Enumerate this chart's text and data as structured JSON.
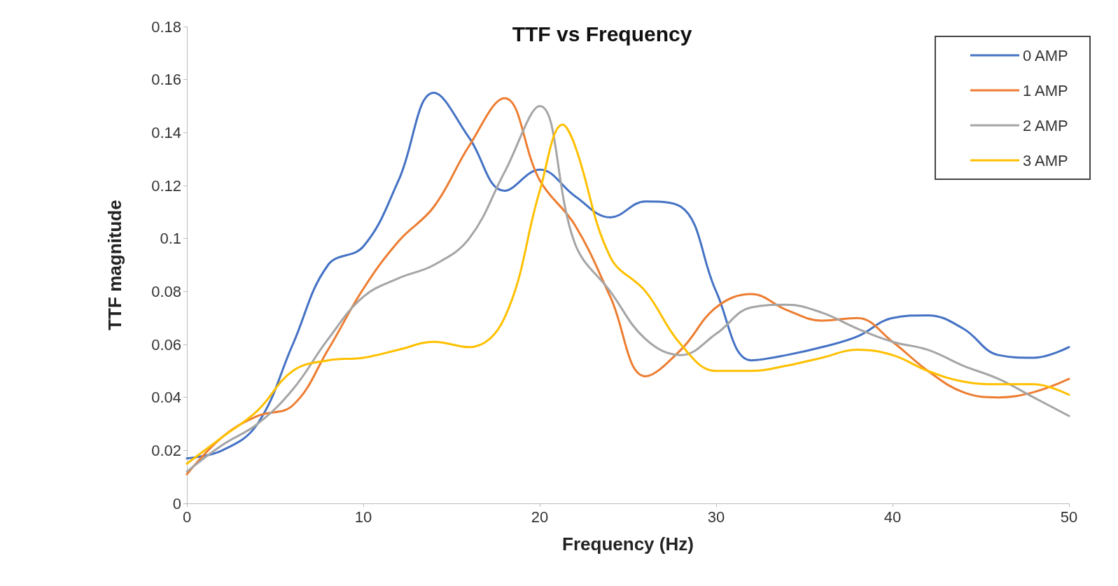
{
  "chart_data": {
    "type": "line",
    "title": "TTF vs Frequency",
    "xlabel": "Frequency (Hz)",
    "ylabel": "TTF magnitude",
    "x": [
      0,
      2,
      4,
      6,
      8,
      10,
      12,
      14,
      16,
      18,
      20,
      22,
      24,
      26,
      28,
      30,
      32,
      34,
      36,
      38,
      40,
      42,
      44,
      46,
      48,
      50
    ],
    "series": [
      {
        "name": "0 AMP",
        "color": "#4472c4",
        "values": [
          0.017,
          0.02,
          0.03,
          0.06,
          0.09,
          0.097,
          0.122,
          0.155,
          0.138,
          0.118,
          0.126,
          0.116,
          0.108,
          0.114,
          0.112,
          0.08,
          0.054,
          0.056,
          0.059,
          0.063,
          0.07,
          0.071,
          0.066,
          0.056,
          0.055,
          0.059
        ]
      },
      {
        "name": "1 AMP",
        "color": "#ed7d31",
        "values": [
          0.011,
          0.025,
          0.033,
          0.037,
          0.058,
          0.081,
          0.099,
          0.112,
          0.135,
          0.153,
          0.122,
          0.105,
          0.078,
          0.048,
          0.058,
          0.074,
          0.079,
          0.073,
          0.069,
          0.07,
          0.061,
          0.05,
          0.042,
          0.04,
          0.042,
          0.047
        ]
      },
      {
        "name": "2 AMP",
        "color": "#a5a5a5",
        "values": [
          0.012,
          0.022,
          0.03,
          0.043,
          0.062,
          0.078,
          0.085,
          0.09,
          0.1,
          0.125,
          0.15,
          0.098,
          0.08,
          0.062,
          0.056,
          0.064,
          0.074,
          0.075,
          0.072,
          0.066,
          0.061,
          0.058,
          0.052,
          0.047,
          0.04,
          0.033
        ]
      },
      {
        "name": "3 AMP",
        "color": "#ffc000",
        "x": [
          0,
          2,
          4,
          6,
          8,
          10,
          12,
          14,
          16,
          18,
          20,
          21.3,
          22,
          24,
          26,
          28,
          30,
          32,
          34,
          36,
          38,
          40,
          42,
          44,
          46,
          48,
          50
        ],
        "values": [
          0.015,
          0.025,
          0.035,
          0.05,
          0.054,
          0.055,
          0.058,
          0.061,
          0.059,
          0.07,
          0.118,
          0.143,
          0.135,
          0.093,
          0.08,
          0.06,
          0.05,
          0.05,
          0.052,
          0.055,
          0.058,
          0.056,
          0.05,
          0.046,
          0.045,
          0.045,
          0.041
        ]
      }
    ],
    "xlim": [
      0,
      50
    ],
    "xticks": [
      0,
      10,
      20,
      30,
      40,
      50
    ],
    "ylim": [
      0,
      0.18
    ],
    "yticks": [
      0,
      0.02,
      0.04,
      0.06,
      0.08,
      0.1,
      0.12,
      0.14,
      0.16,
      0.18
    ],
    "grid": false,
    "legend": "top right",
    "marker": "none",
    "line_style": "solid"
  }
}
